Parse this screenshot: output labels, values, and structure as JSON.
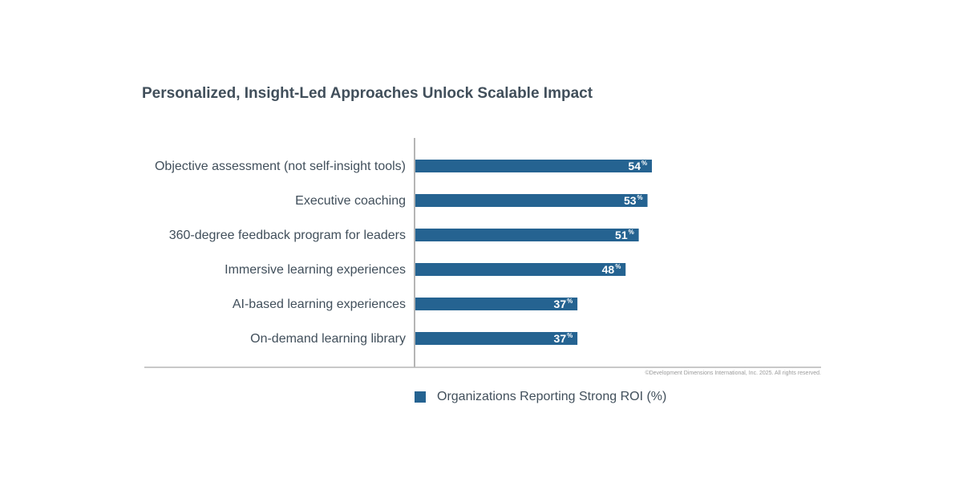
{
  "chart_data": {
    "type": "bar",
    "orientation": "horizontal",
    "title": "Personalized, Insight-Led Approaches Unlock Scalable Impact",
    "categories": [
      "Objective assessment (not self-insight tools)",
      "Executive coaching",
      "360-degree feedback program for leaders",
      "Immersive learning experiences",
      "AI-based learning experiences",
      "On-demand learning library"
    ],
    "series": [
      {
        "name": "Organizations Reporting Strong ROI (%)",
        "values": [
          54,
          53,
          51,
          48,
          37,
          37
        ],
        "color": "#256391"
      }
    ],
    "value_suffix": "%",
    "xlim": [
      0,
      100
    ],
    "grid": false,
    "legend": "bottom",
    "credit": "©Development Dimensions International, Inc. 2025. All rights reserved."
  }
}
